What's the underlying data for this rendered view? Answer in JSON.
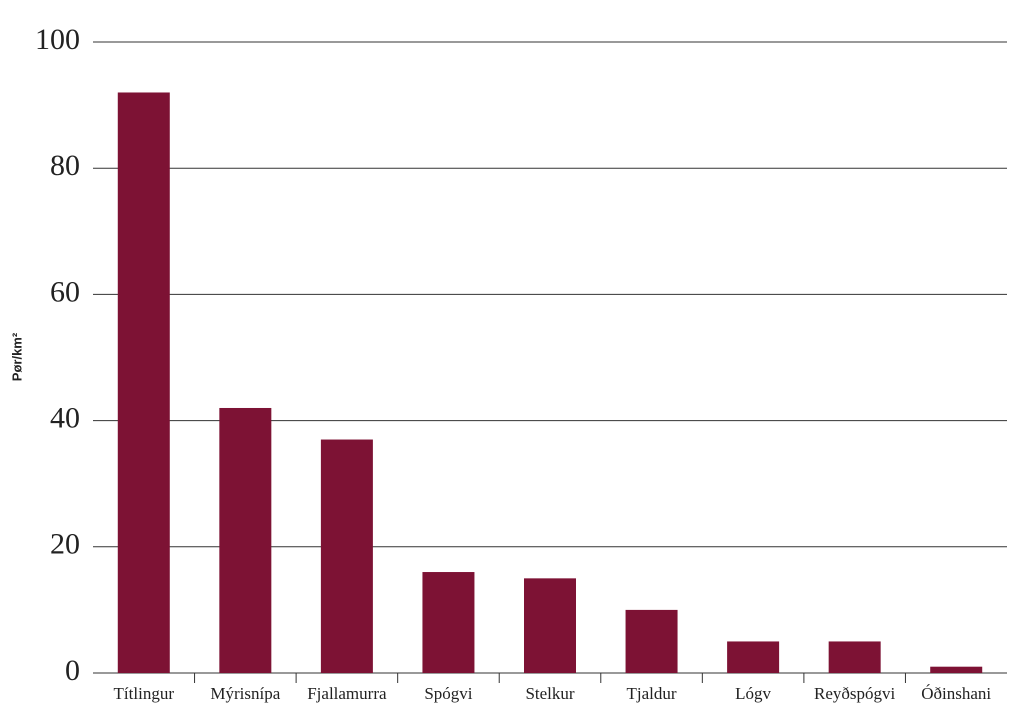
{
  "chart_data": {
    "type": "bar",
    "y_label": "Pør/km²",
    "categories": [
      "Títlingur",
      "Mýrisnípa",
      "Fjallamurra",
      "Spógvi",
      "Stelkur",
      "Tjaldur",
      "Lógv",
      "Reyðspógvi",
      "Óðinshani"
    ],
    "values": [
      92,
      42,
      37,
      16,
      15,
      10,
      5,
      5,
      1
    ],
    "color": "#7d1234",
    "ylim": [
      0,
      100
    ],
    "yticks": [
      0,
      20,
      40,
      60,
      80,
      100
    ],
    "grid": true
  }
}
